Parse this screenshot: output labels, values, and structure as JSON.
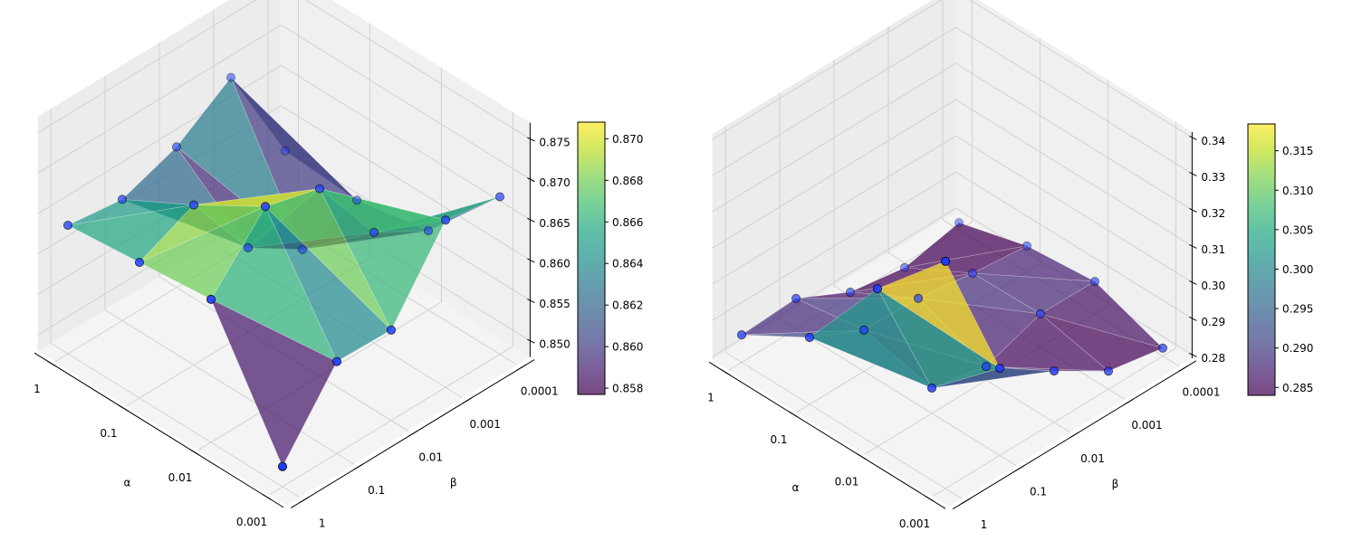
{
  "chart_data": [
    {
      "type": "surface",
      "colormap": "viridis",
      "xlabel": "α",
      "ylabel": "β",
      "x_ticks": [
        "1",
        "0.1",
        "0.01",
        "0.001"
      ],
      "y_ticks": [
        "1",
        "0.1",
        "0.01",
        "0.001",
        "0.0001"
      ],
      "z_ticks": [
        "0.850",
        "0.855",
        "0.860",
        "0.865",
        "0.870",
        "0.875"
      ],
      "z_tick_values": [
        0.85,
        0.855,
        0.86,
        0.865,
        0.87,
        0.875
      ],
      "zlim": [
        0.848,
        0.877
      ],
      "z": [
        [
          0.8639,
          0.863,
          0.8654,
          0.8699,
          0.8567
        ],
        [
          0.8648,
          0.8678,
          0.8584,
          0.8541,
          0.8561
        ],
        [
          0.8657,
          0.8731,
          0.8712,
          0.8617,
          0.8578
        ],
        [
          0.8505,
          0.8594,
          0.8592,
          0.8687,
          0.8675
        ]
      ],
      "colorbar": {
        "ticks": [
          "0.858",
          "0.860",
          "0.862",
          "0.864",
          "0.866",
          "0.868",
          "0.870"
        ],
        "tick_values": [
          0.858,
          0.86,
          0.862,
          0.864,
          0.866,
          0.868,
          0.87
        ],
        "range": [
          0.8577,
          0.8708
        ]
      }
    },
    {
      "type": "surface",
      "colormap": "viridis",
      "xlabel": "α",
      "ylabel": "β",
      "x_ticks": [
        "1",
        "0.1",
        "0.01",
        "0.001"
      ],
      "y_ticks": [
        "1",
        "0.1",
        "0.01",
        "0.001",
        "0.0001"
      ],
      "z_ticks": [
        "0.28",
        "0.29",
        "0.30",
        "0.31",
        "0.32",
        "0.33",
        "0.34"
      ],
      "z_tick_values": [
        0.28,
        0.29,
        0.3,
        0.31,
        0.32,
        0.33,
        0.34
      ],
      "zlim": [
        0.279,
        0.3415
      ],
      "z": [
        [
          0.2866,
          0.2875,
          0.2801,
          0.2777,
          0.281
        ],
        [
          0.2975,
          0.2904,
          0.29,
          0.2878,
          0.2862
        ],
        [
          0.3226,
          0.286,
          0.2828,
          0.2882,
          0.288
        ],
        [
          0.3418,
          0.3031,
          0.2932,
          0.284,
          0.2812
        ]
      ],
      "colorbar": {
        "ticks": [
          "0.285",
          "0.290",
          "0.295",
          "0.300",
          "0.305",
          "0.310",
          "0.315"
        ],
        "tick_values": [
          0.285,
          0.29,
          0.295,
          0.3,
          0.305,
          0.31,
          0.315
        ],
        "range": [
          0.284,
          0.3184
        ]
      }
    }
  ],
  "colors": {
    "marker": "#1f3cff",
    "marker_edge": "#000000",
    "pane_floor": "#f4f4f4",
    "pane_wall_left": "#ececec",
    "pane_wall_right": "#f0f0f0",
    "grid": "#cfcfcf"
  }
}
